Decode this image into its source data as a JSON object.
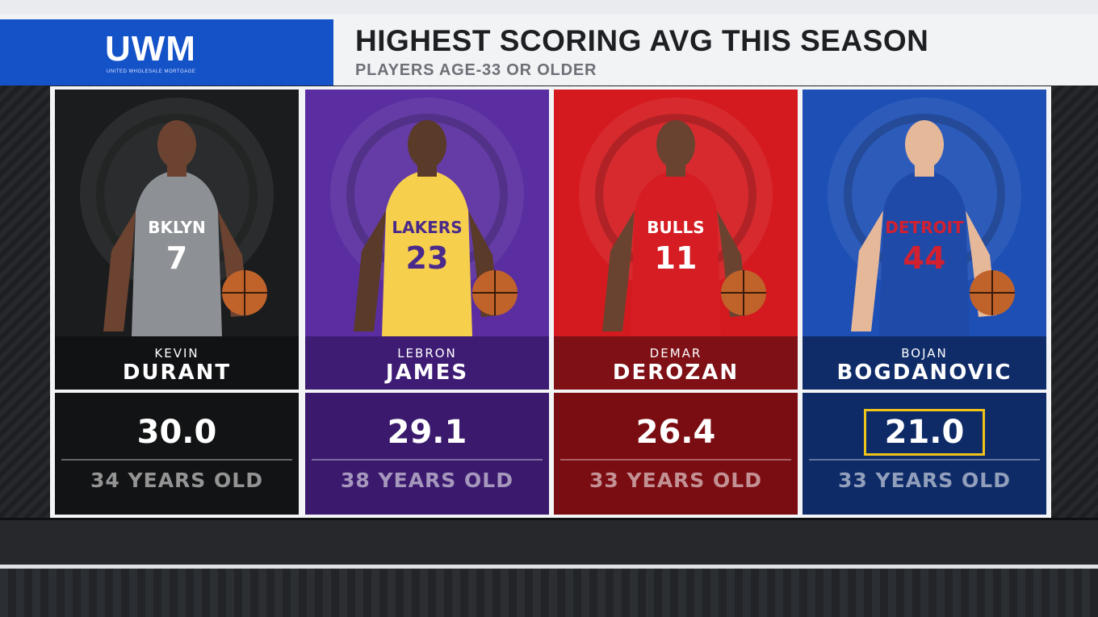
{
  "header": {
    "logo": "UWM",
    "logo_sub": "UNITED WHOLESALE MORTGAGE",
    "title": "HIGHEST SCORING AVG THIS SEASON",
    "subtitle": "PLAYERS AGE-33 OR OLDER"
  },
  "players": [
    {
      "first": "KEVIN",
      "last": "DURANT",
      "ppg": "30.0",
      "age": "34 YEARS OLD",
      "jersey_text": "BKLYN",
      "number": "7",
      "team_bg": "#1b1c1e",
      "stat_bg": "#121314",
      "name_bg": "#111213",
      "highlighted": false
    },
    {
      "first": "LEBRON",
      "last": "JAMES",
      "ppg": "29.1",
      "age": "38 YEARS OLD",
      "jersey_text": "LAKERS",
      "number": "23",
      "team_bg": "#5a2ea0",
      "stat_bg": "#3b1a6e",
      "name_bg": "#3e1c74",
      "highlighted": false
    },
    {
      "first": "DEMAR",
      "last": "DEROZAN",
      "ppg": "26.4",
      "age": "33 YEARS OLD",
      "jersey_text": "BULLS",
      "number": "11",
      "team_bg": "#d41a1f",
      "stat_bg": "#7a0d12",
      "name_bg": "#7e1016",
      "highlighted": false
    },
    {
      "first": "BOJAN",
      "last": "BOGDANOVIC",
      "ppg": "21.0",
      "age": "33 YEARS OLD",
      "jersey_text": "DETROIT",
      "number": "44",
      "team_bg": "#1d4fb5",
      "stat_bg": "#0e2b68",
      "name_bg": "#102c68",
      "highlighted": true
    }
  ],
  "colors": {
    "logo_blue": "#1452c8",
    "highlight": "#f0c419"
  }
}
